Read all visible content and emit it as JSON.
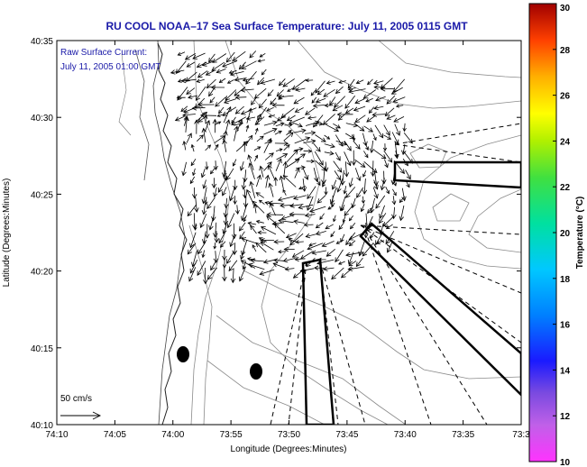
{
  "title": "RU COOL  NOAA–17  Sea Surface Temperature:  July 11, 2005 0115 GMT",
  "annotation": {
    "line1": "Raw Surface Current:",
    "line2": "July 11, 2005 01:00 GMT"
  },
  "x_axis": {
    "label": "Longitude (Degrees:Minutes)",
    "ticks": [
      "74:10",
      "74:05",
      "74:00",
      "73:55",
      "73:50",
      "73:45",
      "73:40",
      "73:35",
      "73:3"
    ]
  },
  "y_axis": {
    "label": "Latitude (Degrees:Minutes)",
    "ticks": [
      "40:35",
      "40:30",
      "40:25",
      "40:20",
      "40:15",
      "40:10"
    ]
  },
  "colorbar": {
    "label": "Temperature (°C)",
    "ticks": [
      "30",
      "28",
      "26",
      "24",
      "22",
      "20",
      "18",
      "16",
      "14",
      "12",
      "10"
    ],
    "range": [
      10,
      30
    ]
  },
  "scale_arrow": {
    "label": "50 cm/s"
  },
  "colors": {
    "title": "#1a1aa8",
    "annotation": "#1a1aa8",
    "land": "#ffffff",
    "contour": "#8a8a8a",
    "vectors": "#000000"
  }
}
